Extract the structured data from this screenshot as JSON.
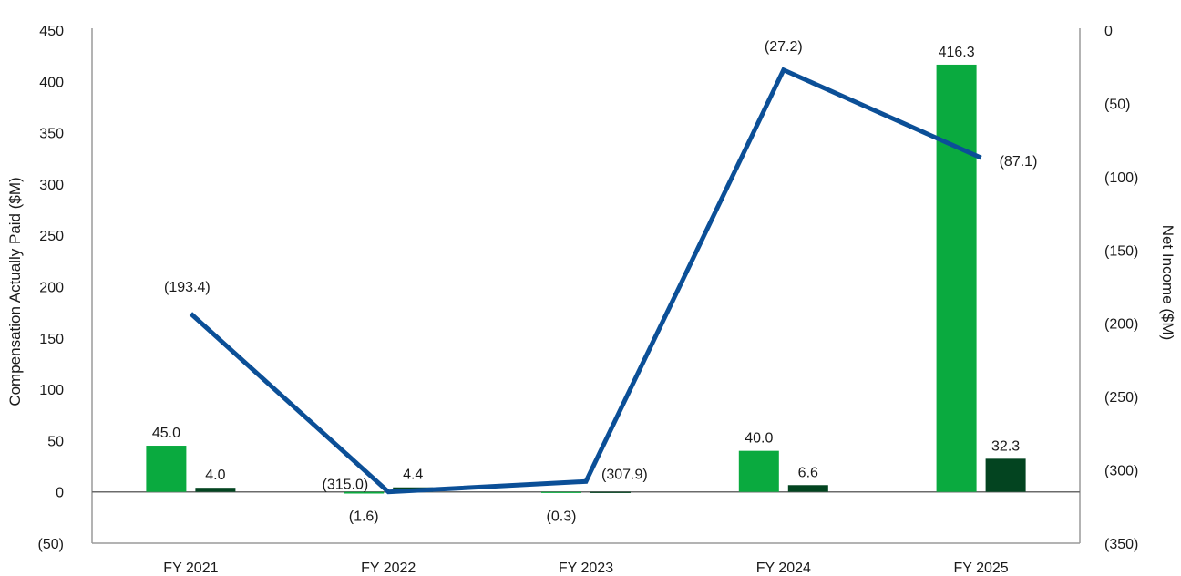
{
  "chart_data": {
    "type": "bar+line",
    "categories": [
      "FY 2021",
      "FY 2022",
      "FY 2023",
      "FY 2024",
      "FY 2025"
    ],
    "y_left": {
      "label": "Compensation Actually Paid ($M)",
      "min": -50,
      "max": 450,
      "step": 50,
      "tick_labels": [
        "(50)",
        "0",
        "50",
        "100",
        "150",
        "200",
        "250",
        "300",
        "350",
        "400",
        "450"
      ]
    },
    "y_right": {
      "label": "Net Income ($M)",
      "min": -350,
      "max": 0,
      "step": 50,
      "tick_labels": [
        "(350)",
        "(300)",
        "(250)",
        "(200)",
        "(150)",
        "(100)",
        "(50)",
        "0"
      ]
    },
    "bar_series": [
      {
        "color": "#0aaa3f",
        "axis": "left",
        "values": [
          45.0,
          -1.6,
          -0.3,
          40.0,
          416.3
        ],
        "labels": [
          "45.0",
          "(1.6)",
          "(0.3)",
          "40.0",
          "416.3"
        ]
      },
      {
        "color": "#034420",
        "axis": "left",
        "values": [
          4.0,
          4.4,
          0.0,
          6.6,
          32.3
        ],
        "labels": [
          "4.0",
          "4.4",
          "",
          "6.6",
          "32.3"
        ]
      }
    ],
    "line_series": {
      "color": "#0b4f97",
      "axis": "right",
      "values": [
        -193.4,
        -315.0,
        -307.9,
        -27.2,
        -87.1
      ],
      "labels": [
        "(193.4)",
        "(315.0)",
        "(307.9)",
        "(27.2)",
        "(87.1)"
      ]
    },
    "legend": "none",
    "grid": false
  }
}
